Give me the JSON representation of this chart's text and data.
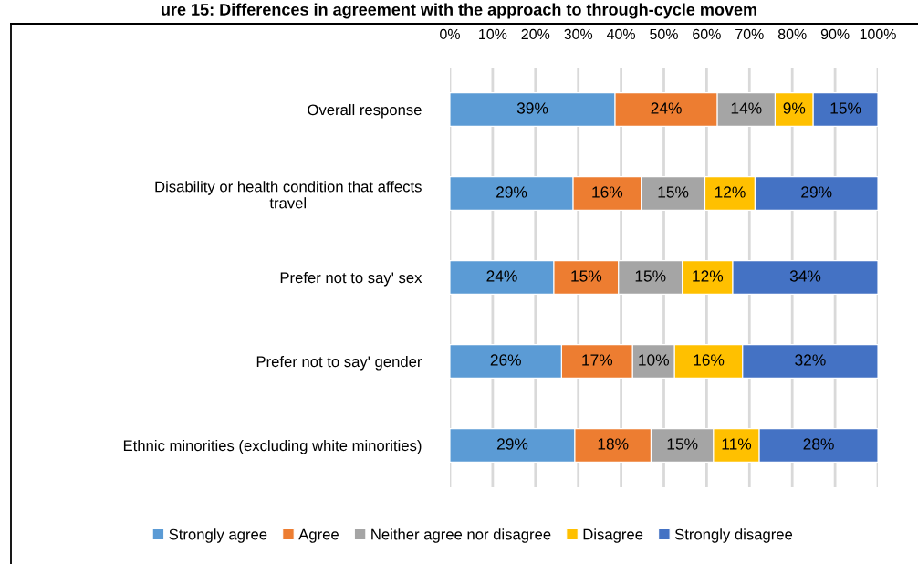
{
  "chart_data": {
    "type": "bar",
    "orientation": "horizontal",
    "stacked": true,
    "title": "ure 15: Differences in agreement with the approach to through-cycle movem",
    "categories": [
      "Overall response",
      "Disability or health condition that affects\ntravel",
      "Prefer not to say' sex",
      "Prefer not to say' gender",
      "Ethnic minorities (excluding white minorities)"
    ],
    "series": [
      {
        "name": "Strongly agree",
        "color": "#5b9bd5",
        "values": [
          38.6,
          28.8,
          24.3,
          26.1,
          29.2
        ],
        "value_labels": [
          "39%",
          "29%",
          "24%",
          "26%",
          "29%"
        ]
      },
      {
        "name": "Agree",
        "color": "#ed7d31",
        "values": [
          23.9,
          15.9,
          15.1,
          16.6,
          17.8
        ],
        "value_labels": [
          "24%",
          "16%",
          "15%",
          "17%",
          "18%"
        ]
      },
      {
        "name": "Neither agree nor disagree",
        "color": "#a5a5a5",
        "values": [
          13.5,
          14.9,
          14.9,
          9.8,
          14.6
        ],
        "value_labels": [
          "14%",
          "15%",
          "15%",
          "10%",
          "15%"
        ]
      },
      {
        "name": "Disagree",
        "color": "#ffc000",
        "values": [
          8.9,
          11.7,
          11.8,
          15.9,
          10.7
        ],
        "value_labels": [
          "9%",
          "12%",
          "12%",
          "16%",
          "11%"
        ]
      },
      {
        "name": "Strongly disagree",
        "color": "#4472c4",
        "values": [
          15.1,
          28.7,
          33.9,
          31.6,
          27.7
        ],
        "value_labels": [
          "15%",
          "29%",
          "34%",
          "32%",
          "28%"
        ]
      }
    ],
    "xlim": [
      0,
      100
    ],
    "xticks": [
      {
        "value": 0,
        "label": "0%"
      },
      {
        "value": 10,
        "label": "10%"
      },
      {
        "value": 20,
        "label": "20%"
      },
      {
        "value": 30,
        "label": "30%"
      },
      {
        "value": 40,
        "label": "40%"
      },
      {
        "value": 50,
        "label": "50%"
      },
      {
        "value": 60,
        "label": "60%"
      },
      {
        "value": 70,
        "label": "70%"
      },
      {
        "value": 80,
        "label": "80%"
      },
      {
        "value": 90,
        "label": "90%"
      },
      {
        "value": 100,
        "label": "100%"
      }
    ],
    "grid": "x",
    "legend": "bottom"
  }
}
